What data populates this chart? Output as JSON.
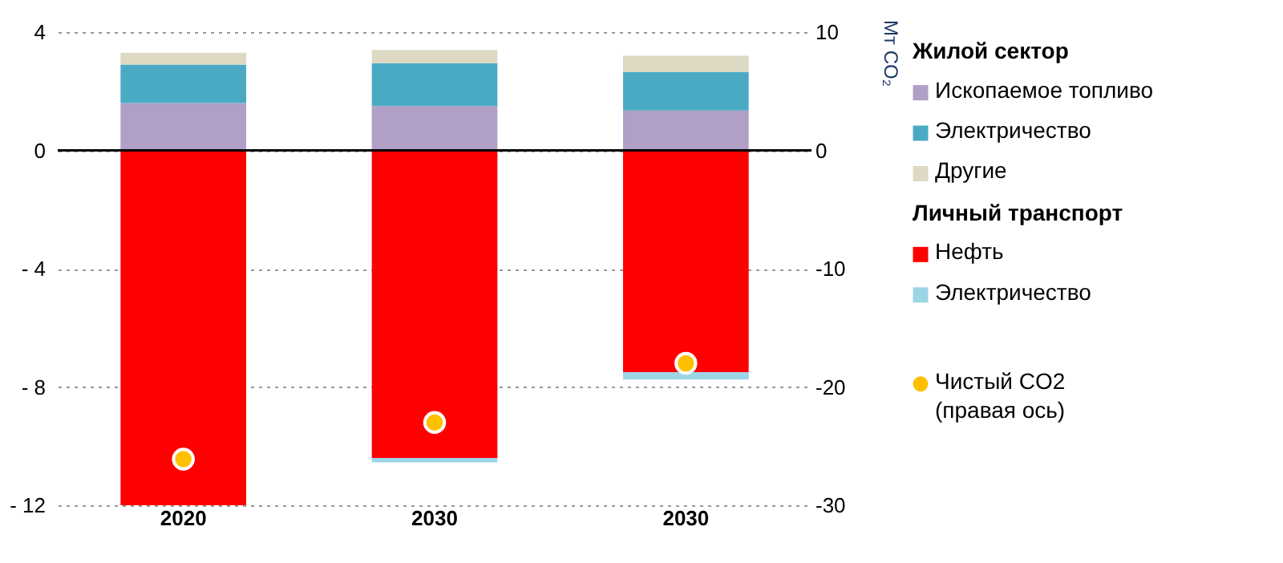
{
  "chart_data": {
    "type": "bar",
    "stacked": true,
    "categories": [
      "2020",
      "2030",
      "2030"
    ],
    "y2label": "Мт CO₂",
    "annotations": [
      "Жилой сектор",
      "Личный транспорт"
    ],
    "ylim": [
      -12,
      4
    ],
    "yticks": [
      4,
      0,
      {
        "value": -4,
        "label": "- 4"
      },
      {
        "value": -8,
        "label": "- 8"
      },
      {
        "value": -12,
        "label": "- 12"
      }
    ],
    "y2lim": [
      -30,
      10
    ],
    "y2ticks": [
      10,
      0,
      -10,
      -20,
      -30
    ],
    "grid": "y",
    "legend": "right",
    "ref_lines": [
      {
        "axis": "y",
        "value": 0,
        "color": "#000000"
      }
    ],
    "series": [
      {
        "name": "Ископаемое топливо",
        "color": "#b09fc6",
        "values": [
          1.6,
          1.5,
          1.35
        ]
      },
      {
        "name": "Электричество",
        "color": "#4aaac4",
        "values": [
          1.3,
          1.45,
          1.3
        ]
      },
      {
        "name": "Другие",
        "color": "#ddd9c3",
        "values": [
          0.4,
          0.45,
          0.55
        ]
      },
      {
        "name": "Нефть",
        "color": "#ff0000",
        "values": [
          -12,
          -10.4,
          -7.5
        ]
      },
      {
        "name": "Электричество",
        "color": "#9dd5e5",
        "values": [
          0,
          -0.15,
          -0.25
        ]
      },
      {
        "name": "Чистый CO2\n(правая ось)",
        "color": "#ffc000",
        "type": "scatter",
        "axis": "y2",
        "marker": "circle",
        "values": [
          -26.1,
          -23.0,
          -18.0
        ]
      }
    ]
  }
}
